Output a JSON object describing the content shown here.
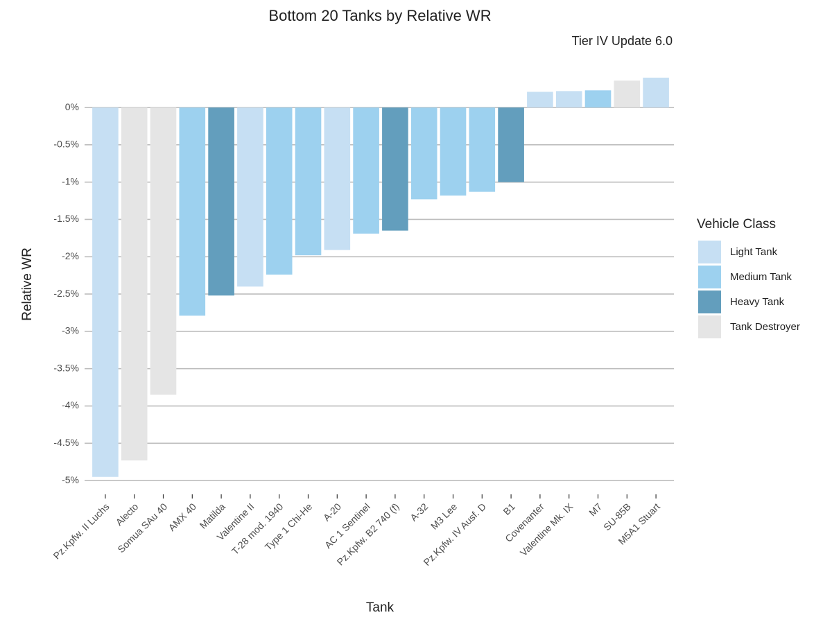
{
  "chart_data": {
    "type": "bar",
    "title": "Bottom 20 Tanks by Relative WR",
    "subtitle": "Tier IV Update 6.0",
    "x_label": "Tank",
    "y_label": "Relative WR",
    "legend_title": "Vehicle Class",
    "legend_position": "right",
    "grid": true,
    "categories": [
      "Pz.Kpfw. II Luchs",
      "Alecto",
      "Somua SAu 40",
      "AMX 40",
      "Matilda",
      "Valentine II",
      "T-28 mod. 1940",
      "Type 1 Chi-He",
      "A-20",
      "AC 1 Sentinel",
      "Pz.Kpfw. B2 740 (f)",
      "A-32",
      "M3 Lee",
      "Pz.Kpfw. IV Ausf. D",
      "B1",
      "Covenanter",
      "Valentine Mk. IX",
      "M7",
      "SU-85B",
      "M5A1 Stuart"
    ],
    "series": [
      {
        "name": "Light Tank",
        "color": "#c6dff3",
        "values": [
          -4.95,
          null,
          null,
          null,
          null,
          -2.4,
          null,
          null,
          -1.91,
          null,
          null,
          null,
          null,
          null,
          null,
          0.21,
          0.22,
          null,
          null,
          0.4
        ]
      },
      {
        "name": "Medium Tank",
        "color": "#9dd1ef",
        "values": [
          null,
          null,
          null,
          -2.79,
          null,
          null,
          -2.24,
          -1.98,
          null,
          -1.69,
          null,
          -1.23,
          -1.18,
          -1.13,
          null,
          null,
          null,
          0.23,
          null,
          null
        ]
      },
      {
        "name": "Heavy Tank",
        "color": "#639ebd",
        "values": [
          null,
          null,
          null,
          null,
          -2.52,
          null,
          null,
          null,
          null,
          null,
          -1.65,
          null,
          null,
          null,
          -1.0,
          null,
          null,
          null,
          null,
          null
        ]
      },
      {
        "name": "Tank Destroyer",
        "color": "#e5e5e5",
        "values": [
          null,
          -4.73,
          -3.85,
          null,
          null,
          null,
          null,
          null,
          null,
          null,
          null,
          null,
          null,
          null,
          null,
          null,
          null,
          null,
          0.36,
          null
        ]
      }
    ],
    "ylim": [
      -5.11,
      0.4
    ],
    "yticks": [
      {
        "value": 0,
        "label": "0%"
      },
      {
        "value": -0.5,
        "label": "-0.5%"
      },
      {
        "value": -1,
        "label": "-1%"
      },
      {
        "value": -1.5,
        "label": "-1.5%"
      },
      {
        "value": -2,
        "label": "-2%"
      },
      {
        "value": -2.5,
        "label": "-2.5%"
      },
      {
        "value": -3,
        "label": "-3%"
      },
      {
        "value": -3.5,
        "label": "-3.5%"
      },
      {
        "value": -4,
        "label": "-4%"
      },
      {
        "value": -4.5,
        "label": "-4.5%"
      },
      {
        "value": -5,
        "label": "-5%"
      }
    ]
  }
}
